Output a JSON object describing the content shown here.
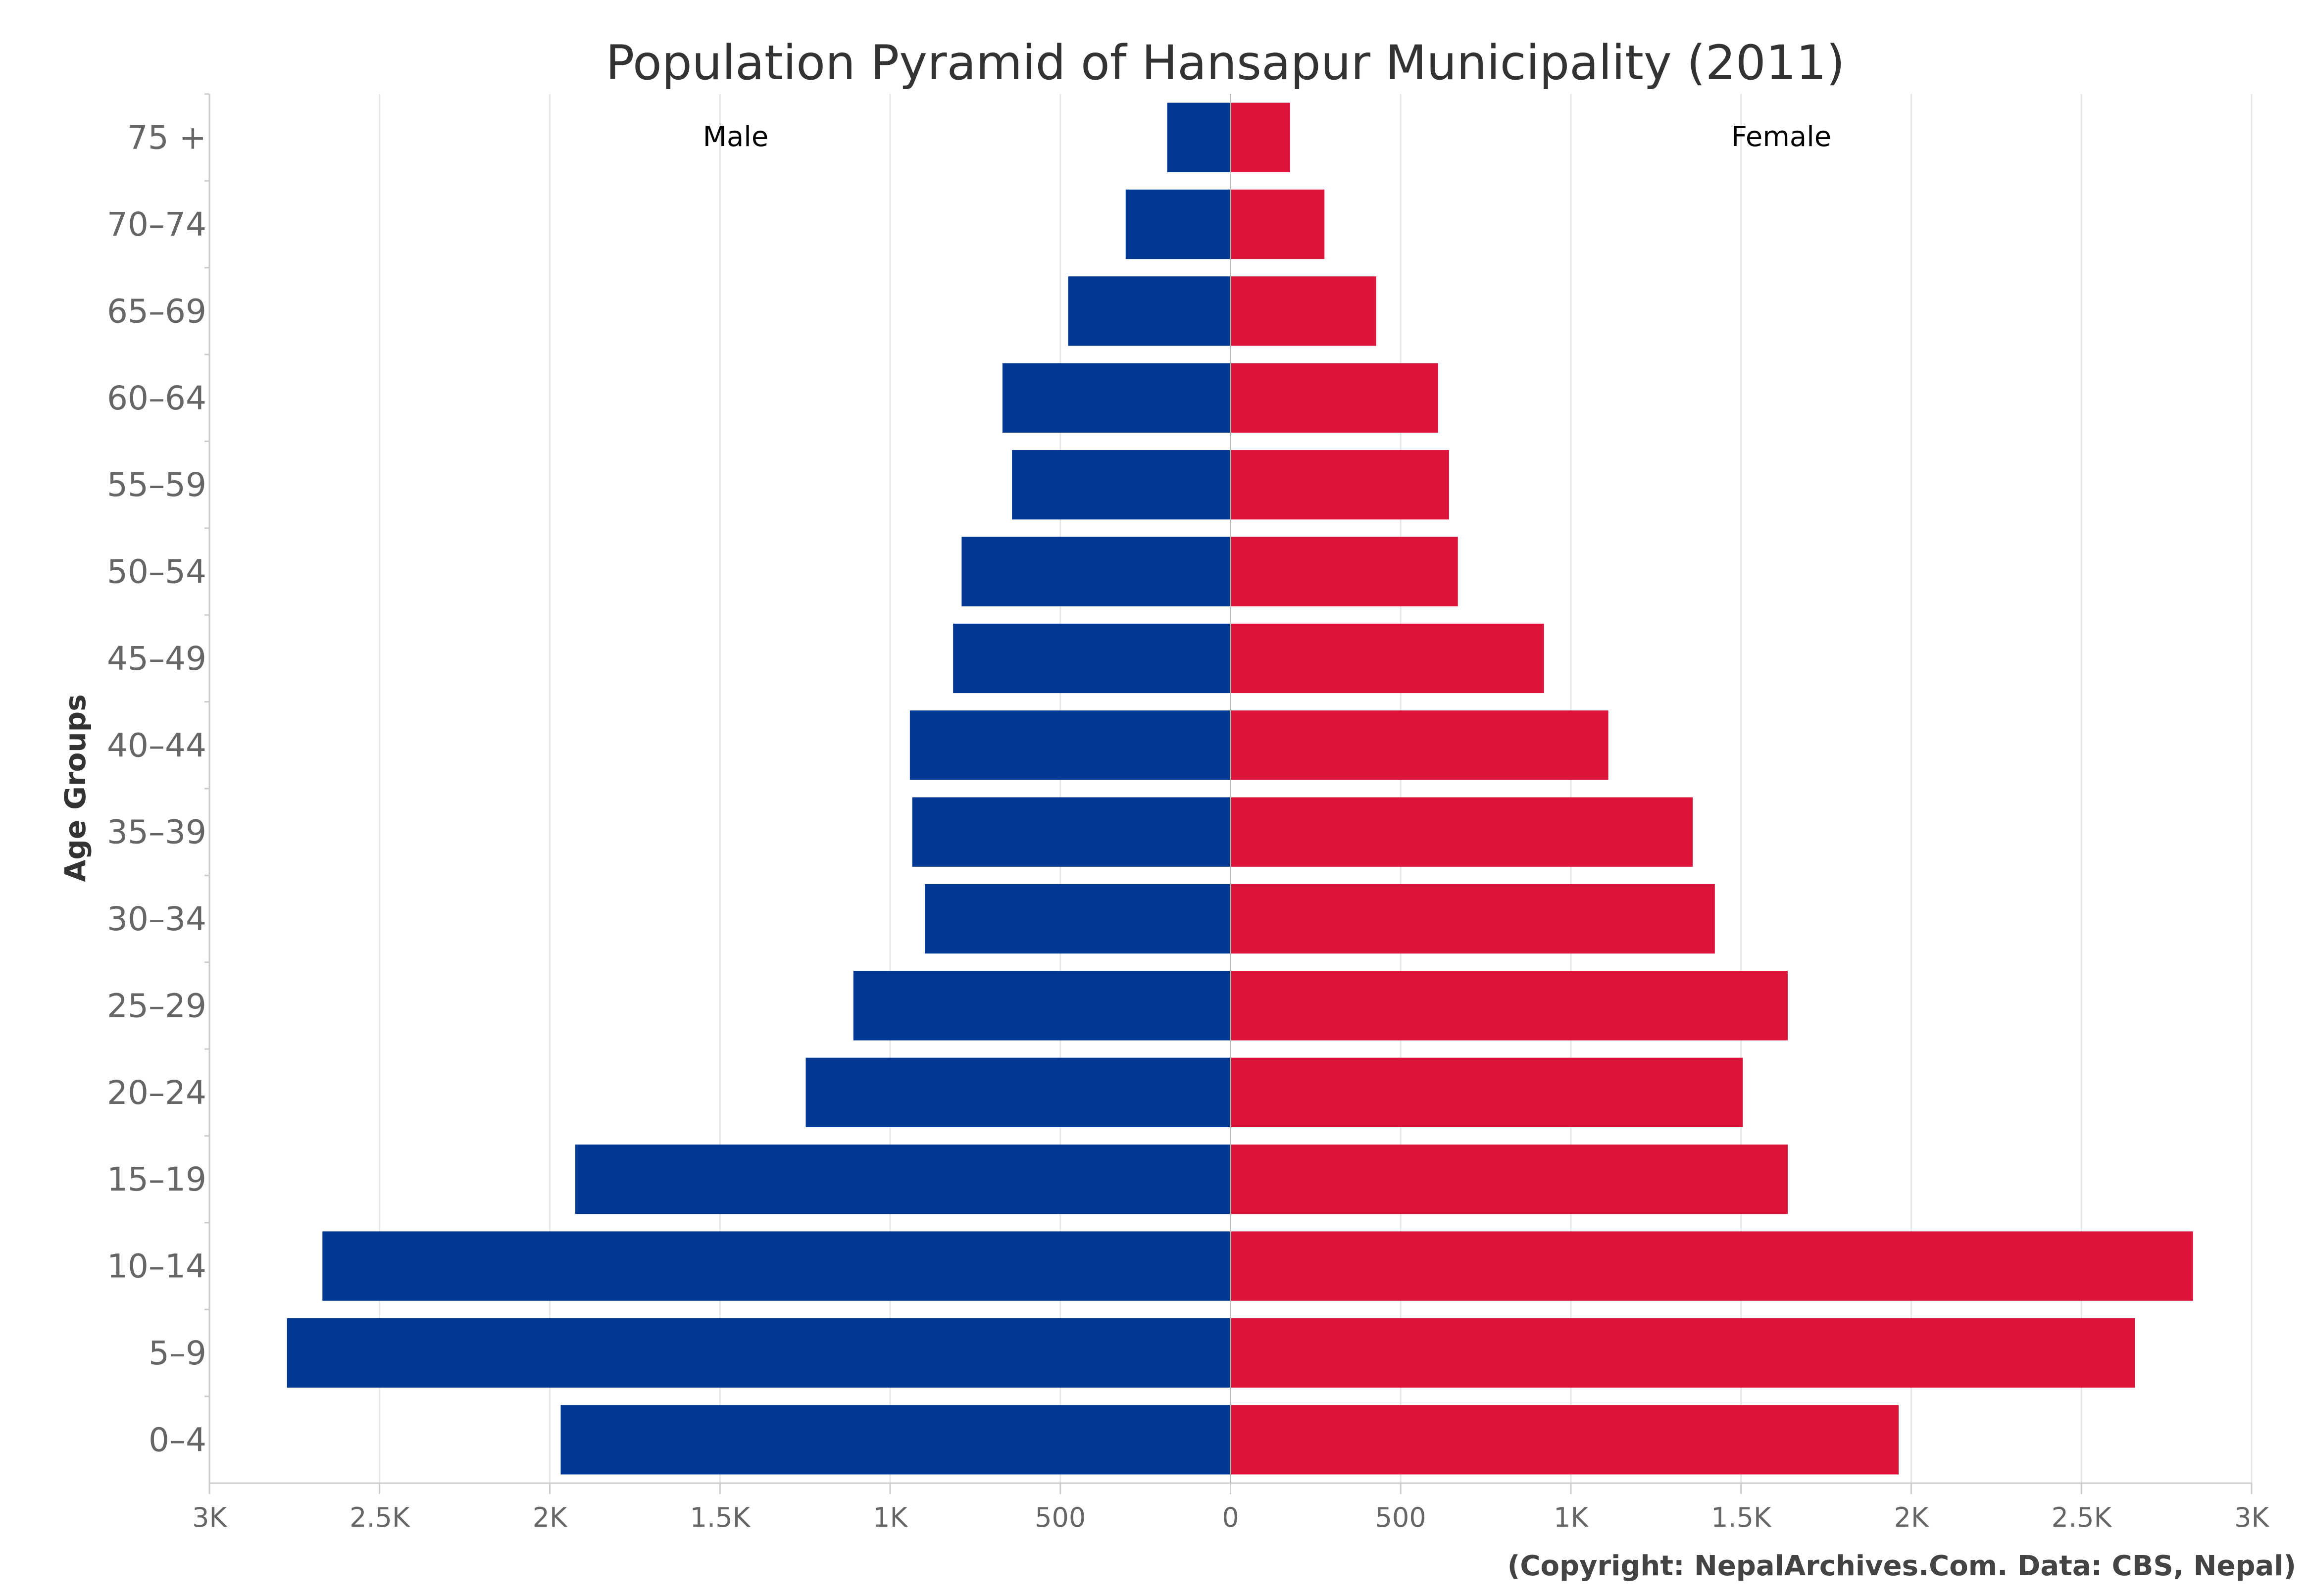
{
  "chart_data": {
    "type": "bar",
    "orientation": "horizontal",
    "subtype": "population-pyramid",
    "title": "Population Pyramid of Hansapur Municipality (2011)",
    "xlabel": "",
    "ylabel": "Age Groups",
    "xlim": [
      -3000,
      3000
    ],
    "x_ticks": [
      -3000,
      -2500,
      -2000,
      -1500,
      -1000,
      -500,
      0,
      500,
      1000,
      1500,
      2000,
      2500,
      3000
    ],
    "x_tick_labels": [
      "3K",
      "2.5K",
      "2K",
      "1.5K",
      "1K",
      "500",
      "0",
      "500",
      "1K",
      "1.5K",
      "2K",
      "2.5K",
      "3K"
    ],
    "grid": "vertical",
    "categories": [
      "0-4",
      "5-9",
      "10-14",
      "15-19",
      "20-24",
      "25-29",
      "30-34",
      "35-39",
      "40-44",
      "45-49",
      "50-54",
      "55-59",
      "60-64",
      "65-69",
      "70-74",
      "75 +"
    ],
    "series": [
      {
        "name": "Male",
        "color": "#003893",
        "side": "left",
        "values": [
          1968,
          2772,
          2668,
          1925,
          1248,
          1108,
          898,
          935,
          942,
          815,
          790,
          642,
          670,
          477,
          308,
          186
        ]
      },
      {
        "name": "Female",
        "color": "#DC143C",
        "side": "right",
        "values": [
          1963,
          2657,
          2828,
          1637,
          1505,
          1637,
          1423,
          1358,
          1110,
          921,
          668,
          642,
          610,
          428,
          276,
          175
        ]
      }
    ],
    "credit": "(Copyright: NepalArchives.Com. Data: CBS, Nepal)"
  }
}
